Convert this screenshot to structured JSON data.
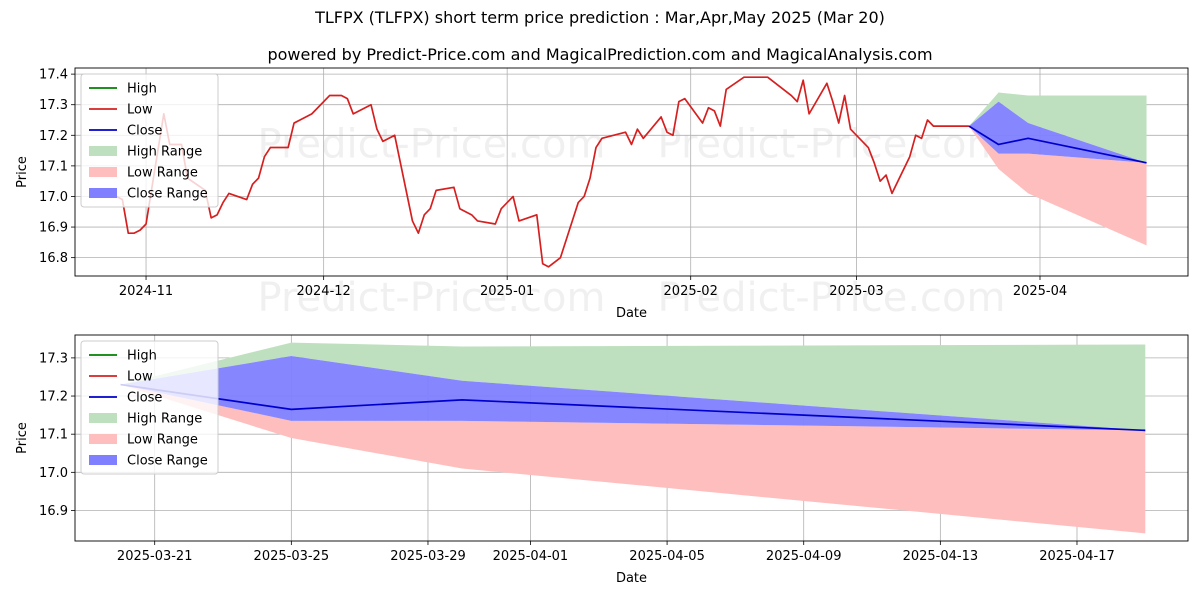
{
  "title": "TLFPX (TLFPX) short term price prediction : Mar,Apr,May 2025 (Mar 20)",
  "subtitle": "powered by Predict-Price.com and MagicalPrediction.com and MagicalAnalysis.com",
  "watermark": "Predict-Price.com",
  "colors": {
    "high": "#008000",
    "low": "#d62020",
    "close": "#0000cc",
    "high_range": "#bfe0bf",
    "low_range": "#ffbebe",
    "close_range": "#7f7fff"
  },
  "chart_data": [
    {
      "type": "line",
      "xlabel": "Date",
      "ylabel": "Price",
      "ylim": [
        16.74,
        17.42
      ],
      "grid": true,
      "legend_position": "upper-left",
      "x_ticks": [
        {
          "date": "2024-11-01",
          "label": "2024-11"
        },
        {
          "date": "2024-12-01",
          "label": "2024-12"
        },
        {
          "date": "2025-01-01",
          "label": "2025-01"
        },
        {
          "date": "2025-02-01",
          "label": "2025-02"
        },
        {
          "date": "2025-03-01",
          "label": "2025-03"
        },
        {
          "date": "2025-04-01",
          "label": "2025-04"
        }
      ],
      "y_ticks": [
        16.8,
        16.9,
        17.0,
        17.1,
        17.2,
        17.3,
        17.4
      ],
      "legend": [
        "High",
        "Low",
        "Close",
        "High Range",
        "Low Range",
        "Close Range"
      ],
      "series": [
        {
          "name": "Low",
          "x": [
            "2024-10-23",
            "2024-10-24",
            "2024-10-25",
            "2024-10-28",
            "2024-10-29",
            "2024-10-30",
            "2024-10-31",
            "2024-11-01",
            "2024-11-04",
            "2024-11-05",
            "2024-11-06",
            "2024-11-07",
            "2024-11-08",
            "2024-11-11",
            "2024-11-12",
            "2024-11-13",
            "2024-11-14",
            "2024-11-15",
            "2024-11-18",
            "2024-11-19",
            "2024-11-20",
            "2024-11-21",
            "2024-11-22",
            "2024-11-25",
            "2024-11-26",
            "2024-11-27",
            "2024-11-29",
            "2024-12-02",
            "2024-12-03",
            "2024-12-04",
            "2024-12-05",
            "2024-12-06",
            "2024-12-09",
            "2024-12-10",
            "2024-12-11",
            "2024-12-12",
            "2024-12-13",
            "2024-12-16",
            "2024-12-17",
            "2024-12-18",
            "2024-12-19",
            "2024-12-20",
            "2024-12-23",
            "2024-12-24",
            "2024-12-26",
            "2024-12-27",
            "2024-12-30",
            "2024-12-31",
            "2025-01-02",
            "2025-01-03",
            "2025-01-06",
            "2025-01-07",
            "2025-01-08",
            "2025-01-10",
            "2025-01-13",
            "2025-01-14",
            "2025-01-15",
            "2025-01-16",
            "2025-01-17",
            "2025-01-21",
            "2025-01-22",
            "2025-01-23",
            "2025-01-24",
            "2025-01-27",
            "2025-01-28",
            "2025-01-29",
            "2025-01-30",
            "2025-01-31",
            "2025-02-03",
            "2025-02-04",
            "2025-02-05",
            "2025-02-06",
            "2025-02-07",
            "2025-02-10",
            "2025-02-11",
            "2025-02-12",
            "2025-02-13",
            "2025-02-14",
            "2025-02-18",
            "2025-02-19",
            "2025-02-20",
            "2025-02-21",
            "2025-02-24",
            "2025-02-25",
            "2025-02-26",
            "2025-02-27",
            "2025-02-28",
            "2025-03-03",
            "2025-03-04",
            "2025-03-05",
            "2025-03-06",
            "2025-03-07",
            "2025-03-10",
            "2025-03-11",
            "2025-03-12",
            "2025-03-13",
            "2025-03-14",
            "2025-03-17",
            "2025-03-18",
            "2025-03-19",
            "2025-03-20"
          ],
          "y": [
            17.02,
            17.01,
            17.02,
            16.99,
            16.88,
            16.88,
            16.89,
            16.91,
            17.27,
            17.17,
            17.17,
            17.17,
            17.06,
            17.02,
            16.93,
            16.94,
            16.98,
            17.01,
            16.99,
            17.04,
            17.06,
            17.13,
            17.16,
            17.16,
            17.24,
            17.25,
            17.27,
            17.33,
            17.33,
            17.33,
            17.32,
            17.27,
            17.3,
            17.22,
            17.18,
            17.19,
            17.2,
            16.92,
            16.88,
            16.94,
            16.96,
            17.02,
            17.03,
            16.96,
            16.94,
            16.92,
            16.91,
            16.96,
            17.0,
            16.92,
            16.94,
            16.78,
            16.77,
            16.8,
            16.98,
            17.0,
            17.06,
            17.16,
            17.19,
            17.21,
            17.17,
            17.22,
            17.19,
            17.26,
            17.21,
            17.2,
            17.31,
            17.32,
            17.24,
            17.29,
            17.28,
            17.23,
            17.35,
            17.39,
            17.39,
            17.39,
            17.39,
            17.39,
            17.33,
            17.31,
            17.38,
            17.27,
            17.37,
            17.31,
            17.24,
            17.33,
            17.22,
            17.16,
            17.11,
            17.05,
            17.07,
            17.01,
            17.13,
            17.2,
            17.19,
            17.25,
            17.23,
            17.23,
            17.23,
            17.23,
            17.23
          ]
        },
        {
          "name": "Close",
          "x": [
            "2025-03-20",
            "2025-03-25",
            "2025-03-30",
            "2025-04-19"
          ],
          "y": [
            17.23,
            17.17,
            17.19,
            17.11
          ]
        }
      ],
      "ranges": [
        {
          "name": "High Range",
          "x": [
            "2025-03-20",
            "2025-03-25",
            "2025-03-30",
            "2025-04-19"
          ],
          "lower": [
            17.23,
            17.31,
            17.24,
            17.11
          ],
          "upper": [
            17.23,
            17.34,
            17.33,
            17.33
          ]
        },
        {
          "name": "Low Range",
          "x": [
            "2025-03-20",
            "2025-03-25",
            "2025-03-30",
            "2025-04-19"
          ],
          "lower": [
            17.23,
            17.09,
            17.01,
            16.84
          ],
          "upper": [
            17.23,
            17.14,
            17.14,
            17.11
          ]
        },
        {
          "name": "Close Range",
          "x": [
            "2025-03-20",
            "2025-03-25",
            "2025-03-30",
            "2025-04-19"
          ],
          "lower": [
            17.23,
            17.14,
            17.14,
            17.11
          ],
          "upper": [
            17.23,
            17.31,
            17.24,
            17.11
          ]
        }
      ]
    },
    {
      "type": "line",
      "xlabel": "Date",
      "ylabel": "Price",
      "ylim": [
        16.82,
        17.36
      ],
      "grid": true,
      "legend_position": "upper-left",
      "x_ticks": [
        {
          "date": "2025-03-21",
          "label": "2025-03-21"
        },
        {
          "date": "2025-03-25",
          "label": "2025-03-25"
        },
        {
          "date": "2025-03-29",
          "label": "2025-03-29"
        },
        {
          "date": "2025-04-01",
          "label": "2025-04-01"
        },
        {
          "date": "2025-04-05",
          "label": "2025-04-05"
        },
        {
          "date": "2025-04-09",
          "label": "2025-04-09"
        },
        {
          "date": "2025-04-13",
          "label": "2025-04-13"
        },
        {
          "date": "2025-04-17",
          "label": "2025-04-17"
        }
      ],
      "y_ticks": [
        16.9,
        17.0,
        17.1,
        17.2,
        17.3
      ],
      "legend": [
        "High",
        "Low",
        "Close",
        "High Range",
        "Low Range",
        "Close Range"
      ],
      "series": [
        {
          "name": "Close",
          "x": [
            "2025-03-20",
            "2025-03-25",
            "2025-03-30",
            "2025-04-19"
          ],
          "y": [
            17.23,
            17.165,
            17.19,
            17.11
          ]
        }
      ],
      "ranges": [
        {
          "name": "High Range",
          "x": [
            "2025-03-20",
            "2025-03-25",
            "2025-03-30",
            "2025-04-19"
          ],
          "lower": [
            17.23,
            17.305,
            17.24,
            17.11
          ],
          "upper": [
            17.23,
            17.34,
            17.33,
            17.335
          ]
        },
        {
          "name": "Low Range",
          "x": [
            "2025-03-20",
            "2025-03-25",
            "2025-03-30",
            "2025-04-19"
          ],
          "lower": [
            17.23,
            17.09,
            17.01,
            16.84
          ],
          "upper": [
            17.23,
            17.135,
            17.135,
            17.11
          ]
        },
        {
          "name": "Close Range",
          "x": [
            "2025-03-20",
            "2025-03-25",
            "2025-03-30",
            "2025-04-19"
          ],
          "lower": [
            17.23,
            17.135,
            17.135,
            17.11
          ],
          "upper": [
            17.23,
            17.305,
            17.24,
            17.11
          ]
        }
      ]
    }
  ]
}
